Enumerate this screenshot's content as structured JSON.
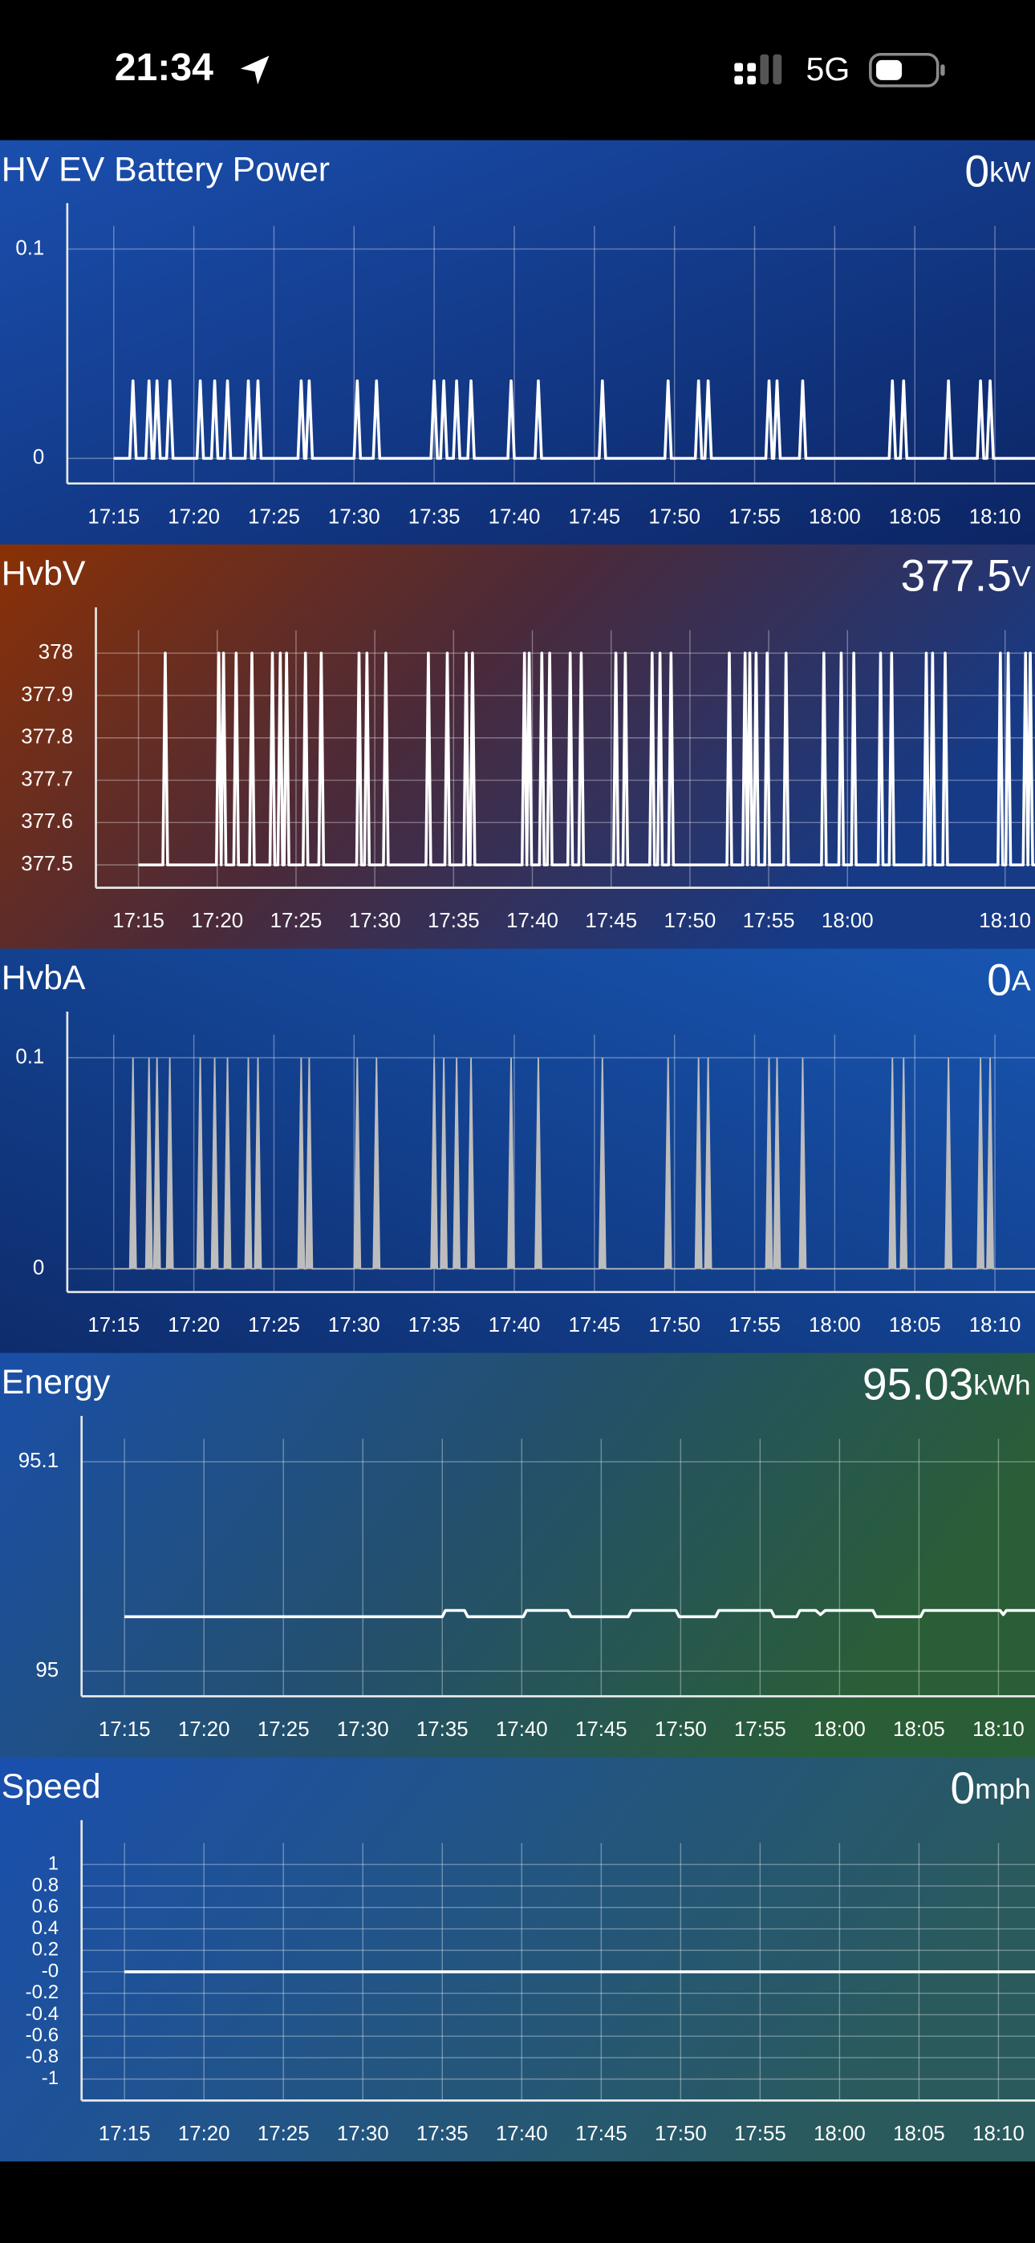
{
  "status_bar": {
    "time": "21:34",
    "network": "5G"
  },
  "chart_data": [
    {
      "type": "line",
      "title": "HV EV Battery Power",
      "current_value": 0,
      "unit": "kW",
      "color": "#ffffff",
      "grid": true,
      "xlim": [
        1032.1,
        1092.5
      ],
      "ylim": [
        -0.012,
        0.111
      ],
      "yticks": [
        0,
        0.1
      ],
      "xticks": [
        {
          "value": 1035,
          "label": "17:15"
        },
        {
          "value": 1040,
          "label": "17:20"
        },
        {
          "value": 1045,
          "label": "17:25"
        },
        {
          "value": 1050,
          "label": "17:30"
        },
        {
          "value": 1055,
          "label": "17:35"
        },
        {
          "value": 1060,
          "label": "17:40"
        },
        {
          "value": 1065,
          "label": "17:45"
        },
        {
          "value": 1070,
          "label": "17:50"
        },
        {
          "value": 1075,
          "label": "17:55"
        },
        {
          "value": 1080,
          "label": "18:00"
        },
        {
          "value": 1085,
          "label": "18:05"
        },
        {
          "value": 1090,
          "label": "18:10"
        }
      ],
      "x": [
        1035,
        1036.0,
        1036.2,
        1036.4,
        1037.0,
        1037.2,
        1037.4,
        1037.5,
        1037.7,
        1037.9,
        1038.3,
        1038.5,
        1038.7,
        1040.2,
        1040.4,
        1040.6,
        1041.1,
        1041.3,
        1041.5,
        1041.9,
        1042.1,
        1042.3,
        1043.2,
        1043.4,
        1043.6,
        1043.8,
        1044.0,
        1044.2,
        1046.5,
        1046.7,
        1046.9,
        1047.0,
        1047.2,
        1047.4,
        1050.0,
        1050.2,
        1050.4,
        1051.2,
        1051.4,
        1051.6,
        1054.8,
        1055.0,
        1055.2,
        1055.4,
        1055.6,
        1055.8,
        1056.2,
        1056.4,
        1056.6,
        1057.1,
        1057.3,
        1057.5,
        1059.6,
        1059.8,
        1060.0,
        1061.3,
        1061.5,
        1061.7,
        1065.3,
        1065.5,
        1065.7,
        1069.4,
        1069.6,
        1069.8,
        1071.3,
        1071.5,
        1071.7,
        1071.9,
        1072.1,
        1072.3,
        1075.7,
        1075.9,
        1076.1,
        1076.2,
        1076.4,
        1076.6,
        1077.8,
        1078.0,
        1078.2,
        1083.4,
        1083.6,
        1083.8,
        1084.1,
        1084.3,
        1084.5,
        1086.9,
        1087.1,
        1087.3,
        1088.9,
        1089.1,
        1089.3,
        1089.5,
        1089.7,
        1089.9,
        1092.5
      ],
      "values": [
        0,
        0,
        0.037,
        0,
        0,
        0.037,
        0,
        0,
        0.037,
        0,
        0,
        0.037,
        0,
        0,
        0.037,
        0,
        0,
        0.037,
        0,
        0,
        0.037,
        0,
        0,
        0.037,
        0,
        0,
        0.037,
        0,
        0,
        0.037,
        0,
        0,
        0.037,
        0,
        0,
        0.037,
        0,
        0,
        0.037,
        0,
        0,
        0.037,
        0,
        0,
        0.037,
        0,
        0,
        0.037,
        0,
        0,
        0.037,
        0,
        0,
        0.037,
        0,
        0,
        0.037,
        0,
        0,
        0.037,
        0,
        0,
        0.037,
        0,
        0,
        0.037,
        0,
        0,
        0.037,
        0,
        0,
        0.037,
        0,
        0,
        0.037,
        0,
        0,
        0.037,
        0,
        0,
        0.037,
        0,
        0,
        0.037,
        0,
        0,
        0.037,
        0,
        0,
        0.037,
        0,
        0,
        0.037,
        0,
        0
      ]
    },
    {
      "type": "line",
      "title": "HvbV",
      "current_value": 377.5,
      "unit": "V",
      "color": "#ffffff",
      "grid": true,
      "xlim": [
        1032.3,
        1091.9
      ],
      "ylim": [
        377.446,
        378.054
      ],
      "yticks": [
        377.5,
        377.6,
        377.7,
        377.8,
        377.9,
        378
      ],
      "xticks": [
        {
          "value": 1035,
          "label": "17:15"
        },
        {
          "value": 1040,
          "label": "17:20"
        },
        {
          "value": 1045,
          "label": "17:25"
        },
        {
          "value": 1050,
          "label": "17:30"
        },
        {
          "value": 1055,
          "label": "17:35"
        },
        {
          "value": 1060,
          "label": "17:40"
        },
        {
          "value": 1065,
          "label": "17:45"
        },
        {
          "value": 1070,
          "label": "17:50"
        },
        {
          "value": 1075,
          "label": "17:55"
        },
        {
          "value": 1080,
          "label": "18:00"
        },
        {
          "value": 1090,
          "label": "18:10"
        }
      ],
      "x": [
        1035,
        1036.55,
        1036.7,
        1036.85,
        1039.95,
        1040.1,
        1040.25,
        1040.25,
        1040.4,
        1040.55,
        1041.05,
        1041.2,
        1041.35,
        1042.05,
        1042.2,
        1042.35,
        1043.35,
        1043.5,
        1043.65,
        1043.85,
        1044.0,
        1044.15,
        1044.25,
        1044.4,
        1044.55,
        1045.45,
        1045.6,
        1045.75,
        1046.45,
        1046.6,
        1046.75,
        1048.85,
        1049.0,
        1049.15,
        1049.35,
        1049.5,
        1049.65,
        1050.55,
        1050.7,
        1050.85,
        1053.25,
        1053.4,
        1053.55,
        1054.45,
        1054.6,
        1054.75,
        1055.65,
        1055.8,
        1055.95,
        1056.05,
        1056.2,
        1056.35,
        1059.35,
        1059.5,
        1059.65,
        1059.65,
        1059.8,
        1059.95,
        1060.45,
        1060.6,
        1060.75,
        1060.95,
        1061.1,
        1061.25,
        1062.25,
        1062.4,
        1062.55,
        1062.95,
        1063.1,
        1063.25,
        1065.15,
        1065.3,
        1065.45,
        1065.75,
        1065.9,
        1066.05,
        1067.45,
        1067.6,
        1067.75,
        1067.95,
        1068.1,
        1068.25,
        1068.65,
        1068.8,
        1068.95,
        1072.35,
        1072.5,
        1072.65,
        1073.35,
        1073.5,
        1073.65,
        1073.65,
        1073.8,
        1073.95,
        1074.05,
        1074.2,
        1074.35,
        1074.75,
        1074.9,
        1075.05,
        1075.95,
        1076.1,
        1076.25,
        1078.35,
        1078.5,
        1078.65,
        1079.45,
        1079.6,
        1079.75,
        1080.25,
        1080.4,
        1080.55,
        1081.95,
        1082.1,
        1082.25,
        1082.65,
        1082.8,
        1082.95,
        1084.85,
        1085.0,
        1085.15,
        1085.25,
        1085.4,
        1085.55,
        1086.05,
        1086.2,
        1086.35,
        1089.55,
        1089.7,
        1089.85,
        1090.05,
        1090.2,
        1090.35,
        1091.15,
        1091.3,
        1091.45,
        1091.45,
        1091.6,
        1091.75,
        1091.9
      ],
      "values": [
        377.5,
        377.5,
        378,
        377.5,
        377.5,
        378,
        377.5,
        377.5,
        378,
        377.5,
        377.5,
        378,
        377.5,
        377.5,
        378,
        377.5,
        377.5,
        378,
        377.5,
        377.5,
        378,
        377.5,
        377.5,
        378,
        377.5,
        377.5,
        378,
        377.5,
        377.5,
        378,
        377.5,
        377.5,
        378,
        377.5,
        377.5,
        378,
        377.5,
        377.5,
        378,
        377.5,
        377.5,
        378,
        377.5,
        377.5,
        378,
        377.5,
        377.5,
        378,
        377.5,
        377.5,
        378,
        377.5,
        377.5,
        378,
        377.5,
        377.5,
        378,
        377.5,
        377.5,
        378,
        377.5,
        377.5,
        378,
        377.5,
        377.5,
        378,
        377.5,
        377.5,
        378,
        377.5,
        377.5,
        378,
        377.5,
        377.5,
        378,
        377.5,
        377.5,
        378,
        377.5,
        377.5,
        378,
        377.5,
        377.5,
        378,
        377.5,
        377.5,
        378,
        377.5,
        377.5,
        378,
        377.5,
        377.5,
        378,
        377.5,
        377.5,
        378,
        377.5,
        377.5,
        378,
        377.5,
        377.5,
        378,
        377.5,
        377.5,
        378,
        377.5,
        377.5,
        378,
        377.5,
        377.5,
        378,
        377.5,
        377.5,
        378,
        377.5,
        377.5,
        378,
        377.5,
        377.5,
        378,
        377.5,
        377.5,
        378,
        377.5,
        377.5,
        378,
        377.5,
        377.5,
        378,
        377.5,
        377.5,
        378,
        377.5,
        377.5,
        378,
        377.5,
        377.5,
        378,
        377.5,
        377.5
      ]
    },
    {
      "type": "area",
      "title": "HvbA",
      "current_value": 0,
      "unit": "A",
      "color": "#bdbdbd",
      "grid": true,
      "xlim": [
        1032.1,
        1092.5
      ],
      "ylim": [
        -0.011,
        0.111
      ],
      "yticks": [
        0,
        0.1
      ],
      "xticks": [
        {
          "value": 1035,
          "label": "17:15"
        },
        {
          "value": 1040,
          "label": "17:20"
        },
        {
          "value": 1045,
          "label": "17:25"
        },
        {
          "value": 1050,
          "label": "17:30"
        },
        {
          "value": 1055,
          "label": "17:35"
        },
        {
          "value": 1060,
          "label": "17:40"
        },
        {
          "value": 1065,
          "label": "17:45"
        },
        {
          "value": 1070,
          "label": "17:50"
        },
        {
          "value": 1075,
          "label": "17:55"
        },
        {
          "value": 1080,
          "label": "18:00"
        },
        {
          "value": 1085,
          "label": "18:05"
        },
        {
          "value": 1090,
          "label": "18:10"
        }
      ],
      "x": [
        1035,
        1036.0,
        1036.2,
        1036.4,
        1037.0,
        1037.2,
        1037.4,
        1037.5,
        1037.7,
        1037.9,
        1038.3,
        1038.5,
        1038.7,
        1040.2,
        1040.4,
        1040.6,
        1041.1,
        1041.3,
        1041.5,
        1041.9,
        1042.1,
        1042.3,
        1043.2,
        1043.4,
        1043.6,
        1043.8,
        1044.0,
        1044.2,
        1046.5,
        1046.7,
        1046.9,
        1047.0,
        1047.2,
        1047.4,
        1050.0,
        1050.2,
        1050.4,
        1051.2,
        1051.4,
        1051.6,
        1054.8,
        1055.0,
        1055.2,
        1055.4,
        1055.6,
        1055.8,
        1056.2,
        1056.4,
        1056.6,
        1057.1,
        1057.3,
        1057.5,
        1059.6,
        1059.8,
        1060.0,
        1061.3,
        1061.5,
        1061.7,
        1065.3,
        1065.5,
        1065.7,
        1069.4,
        1069.6,
        1069.8,
        1071.3,
        1071.5,
        1071.7,
        1071.9,
        1072.1,
        1072.3,
        1075.7,
        1075.9,
        1076.1,
        1076.2,
        1076.4,
        1076.6,
        1077.8,
        1078.0,
        1078.2,
        1083.4,
        1083.6,
        1083.8,
        1084.1,
        1084.3,
        1084.5,
        1086.9,
        1087.1,
        1087.3,
        1088.9,
        1089.1,
        1089.3,
        1089.5,
        1089.7,
        1089.9,
        1092.5
      ],
      "values": [
        0,
        0,
        0.1,
        0,
        0,
        0.1,
        0,
        0,
        0.1,
        0,
        0,
        0.1,
        0,
        0,
        0.1,
        0,
        0,
        0.1,
        0,
        0,
        0.1,
        0,
        0,
        0.1,
        0,
        0,
        0.1,
        0,
        0,
        0.1,
        0,
        0,
        0.1,
        0,
        0,
        0.1,
        0,
        0,
        0.1,
        0,
        0,
        0.1,
        0,
        0,
        0.1,
        0,
        0,
        0.1,
        0,
        0,
        0.1,
        0,
        0,
        0.1,
        0,
        0,
        0.1,
        0,
        0,
        0.1,
        0,
        0,
        0.1,
        0,
        0,
        0.1,
        0,
        0,
        0.1,
        0,
        0,
        0.1,
        0,
        0,
        0.1,
        0,
        0,
        0.1,
        0,
        0,
        0.1,
        0,
        0,
        0.1,
        0,
        0,
        0.1,
        0,
        0,
        0.1,
        0,
        0,
        0.1,
        0,
        0
      ]
    },
    {
      "type": "line",
      "title": "Energy",
      "current_value": 95.03,
      "unit": "kWh",
      "color": "#ffffff",
      "grid": true,
      "xlim": [
        1032.3,
        1092.3
      ],
      "ylim": [
        94.988,
        95.111
      ],
      "yticks": [
        95,
        95.1
      ],
      "xticks": [
        {
          "value": 1035,
          "label": "17:15"
        },
        {
          "value": 1040,
          "label": "17:20"
        },
        {
          "value": 1045,
          "label": "17:25"
        },
        {
          "value": 1050,
          "label": "17:30"
        },
        {
          "value": 1055,
          "label": "17:35"
        },
        {
          "value": 1060,
          "label": "17:40"
        },
        {
          "value": 1065,
          "label": "17:45"
        },
        {
          "value": 1070,
          "label": "17:50"
        },
        {
          "value": 1075,
          "label": "17:55"
        },
        {
          "value": 1080,
          "label": "18:00"
        },
        {
          "value": 1085,
          "label": "18:05"
        },
        {
          "value": 1090,
          "label": "18:10"
        }
      ],
      "x": [
        1035,
        1055.0,
        1055.2,
        1056.4,
        1056.6,
        1060.1,
        1060.3,
        1062.9,
        1063.1,
        1066.7,
        1066.9,
        1069.7,
        1069.9,
        1072.2,
        1072.4,
        1075.7,
        1075.9,
        1077.3,
        1077.5,
        1078.5,
        1078.8,
        1079.1,
        1082.1,
        1082.3,
        1085.1,
        1085.3,
        1090.1,
        1090.3,
        1090.5,
        1092.3
      ],
      "values": [
        95.026,
        95.026,
        95.029,
        95.029,
        95.026,
        95.026,
        95.029,
        95.029,
        95.026,
        95.026,
        95.029,
        95.029,
        95.026,
        95.026,
        95.029,
        95.029,
        95.026,
        95.026,
        95.029,
        95.029,
        95.027,
        95.029,
        95.029,
        95.026,
        95.026,
        95.029,
        95.029,
        95.027,
        95.029,
        95.029
      ]
    },
    {
      "type": "line",
      "title": "Speed",
      "current_value": 0,
      "unit": "mph",
      "color": "#ffffff",
      "grid": true,
      "xlim": [
        1032.3,
        1092.3
      ],
      "ylim": [
        -1.2,
        1.2
      ],
      "yticks": [
        1,
        0.8,
        0.6,
        0.4,
        0.2,
        {
          "value": 0,
          "label": "-0"
        },
        -0.2,
        -0.4,
        -0.6,
        -0.8,
        -1
      ],
      "xticks": [
        {
          "value": 1035,
          "label": "17:15"
        },
        {
          "value": 1040,
          "label": "17:20"
        },
        {
          "value": 1045,
          "label": "17:25"
        },
        {
          "value": 1050,
          "label": "17:30"
        },
        {
          "value": 1055,
          "label": "17:35"
        },
        {
          "value": 1060,
          "label": "17:40"
        },
        {
          "value": 1065,
          "label": "17:45"
        },
        {
          "value": 1070,
          "label": "17:50"
        },
        {
          "value": 1075,
          "label": "17:55"
        },
        {
          "value": 1080,
          "label": "18:00"
        },
        {
          "value": 1085,
          "label": "18:05"
        },
        {
          "value": 1090,
          "label": "18:10"
        }
      ],
      "x": [
        1035,
        1092.3
      ],
      "values": [
        0,
        0
      ]
    }
  ]
}
